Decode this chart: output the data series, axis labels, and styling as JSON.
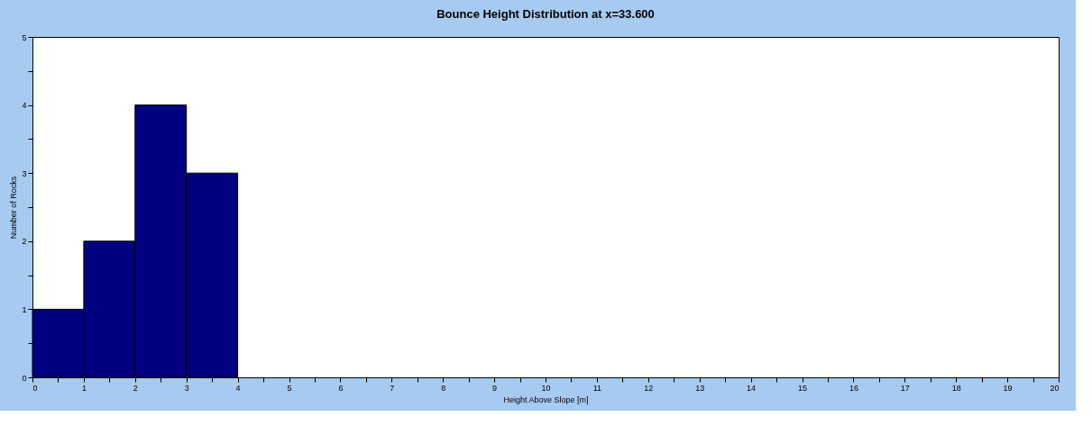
{
  "chart_data": {
    "type": "histogram",
    "title": "Bounce Height Distribution at x=33.600",
    "xlabel": "Height Above Slope [m]",
    "ylabel": "Number of Rocks",
    "bins": [
      0,
      1,
      2,
      3,
      4
    ],
    "values": [
      1,
      2,
      4,
      3
    ],
    "color": "#000080",
    "xlim": [
      0,
      20
    ],
    "ylim": [
      0,
      5
    ],
    "xticks": [
      0,
      {
        "value": 0.5,
        "label": null
      },
      1,
      {
        "value": 1.5,
        "label": null
      },
      2,
      {
        "value": 2.5,
        "label": null
      },
      3,
      {
        "value": 3.5,
        "label": null
      },
      4,
      {
        "value": 4.5,
        "label": null
      },
      5,
      {
        "value": 5.5,
        "label": null
      },
      6,
      {
        "value": 6.5,
        "label": null
      },
      7,
      {
        "value": 7.5,
        "label": null
      },
      8,
      {
        "value": 8.5,
        "label": null
      },
      9,
      {
        "value": 9.5,
        "label": null
      },
      10,
      {
        "value": 10.5,
        "label": null
      },
      11,
      {
        "value": 11.5,
        "label": null
      },
      12,
      {
        "value": 12.5,
        "label": null
      },
      13,
      {
        "value": 13.5,
        "label": null
      },
      14,
      {
        "value": 14.5,
        "label": null
      },
      15,
      {
        "value": 15.5,
        "label": null
      },
      16,
      {
        "value": 16.5,
        "label": null
      },
      17,
      {
        "value": 17.5,
        "label": null
      },
      18,
      {
        "value": 18.5,
        "label": null
      },
      19,
      {
        "value": 19.5,
        "label": null
      },
      20
    ],
    "yticks": [
      0,
      {
        "value": 0.5,
        "label": null
      },
      1,
      {
        "value": 1.5,
        "label": null
      },
      2,
      {
        "value": 2.5,
        "label": null
      },
      3,
      {
        "value": 3.5,
        "label": null
      },
      4,
      {
        "value": 4.5,
        "label": null
      },
      5
    ],
    "grid": false
  }
}
